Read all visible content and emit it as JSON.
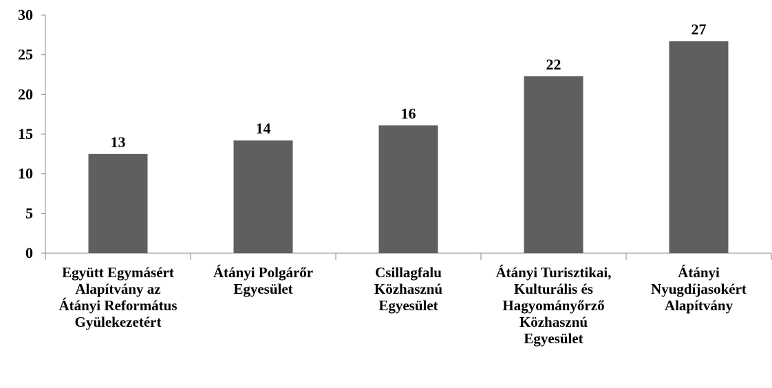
{
  "chart_data": {
    "type": "bar",
    "categories": [
      "Együtt Egymásért Alapítvány az Átányi Református Gyülekezetért",
      "Átányi Polgárőr Egyesület",
      "Csillagfalu Közhasznú Egyesület",
      "Átányi Turisztikai, Kulturális és Hagyományőrző Közhasznú Egyesület",
      "Átányi Nyugdíjasokért Alapítvány"
    ],
    "values": [
      12.5,
      14.2,
      16.1,
      22.3,
      26.7
    ],
    "value_labels": [
      "13",
      "14",
      "16",
      "22",
      "27"
    ],
    "color": "#5f5f5f",
    "ylim": [
      0,
      30
    ],
    "yticks": [
      0,
      5,
      10,
      15,
      20,
      25,
      30
    ],
    "grid": false
  }
}
